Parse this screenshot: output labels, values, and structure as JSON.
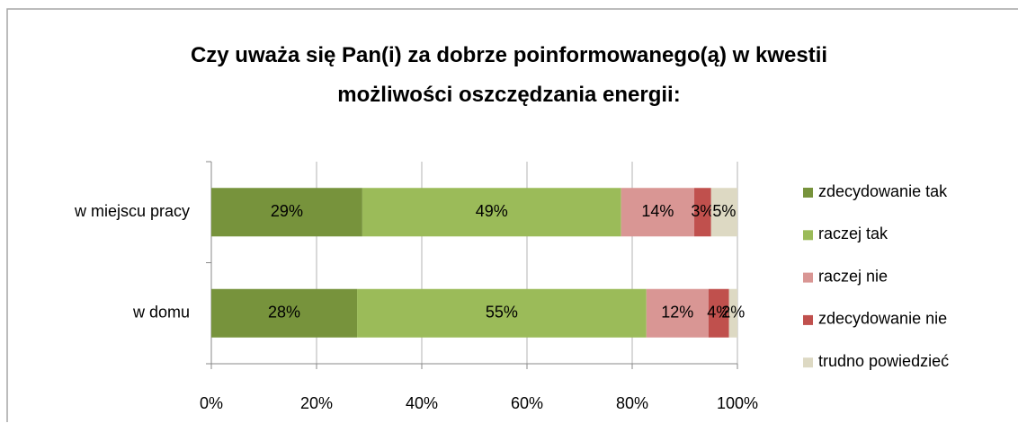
{
  "chart_data": {
    "type": "stacked_barh",
    "title": "Czy uważa się Pan(i) za dobrze poinformowanego(ą) w kwestii możliwości oszczędzania energii:",
    "categories": [
      "w miejscu pracy",
      "w domu"
    ],
    "series": [
      {
        "name": "zdecydowanie tak",
        "color": "#77933c",
        "values": [
          28.7,
          27.7
        ],
        "value_labels": [
          "29%",
          "28%"
        ]
      },
      {
        "name": "raczej tak",
        "color": "#9bbb59",
        "values": [
          49.2,
          55.0
        ],
        "value_labels": [
          "49%",
          "55%"
        ]
      },
      {
        "name": "raczej nie",
        "color": "#d99694",
        "values": [
          13.9,
          11.8
        ],
        "value_labels": [
          "14%",
          "12%"
        ]
      },
      {
        "name": "zdecydowanie nie",
        "color": "#c0504d",
        "values": [
          3.2,
          3.9
        ],
        "value_labels": [
          "3%",
          "4%"
        ]
      },
      {
        "name": "trudno powiedzieć",
        "color": "#ddd9c3",
        "values": [
          5.0,
          1.6
        ],
        "value_labels": [
          "5%",
          "2%"
        ]
      }
    ],
    "xlim": [
      0,
      100
    ],
    "xticks": [
      {
        "value": 0,
        "label": "0%"
      },
      {
        "value": 20,
        "label": "20%"
      },
      {
        "value": 40,
        "label": "40%"
      },
      {
        "value": 60,
        "label": "60%"
      },
      {
        "value": 80,
        "label": "80%"
      },
      {
        "value": 100,
        "label": "100%"
      }
    ],
    "grid": true,
    "legend": "right"
  }
}
